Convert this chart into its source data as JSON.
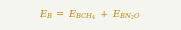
{
  "formula": "$E_{B}\\;=\\;E_{BCH_{4}}\\;+\\;E_{BN_{2}O}$",
  "text_color": "#c8820a",
  "background_color": "#f5f5f0",
  "fontsize": 7.0,
  "figsize": [
    1.81,
    0.3
  ],
  "dpi": 100
}
